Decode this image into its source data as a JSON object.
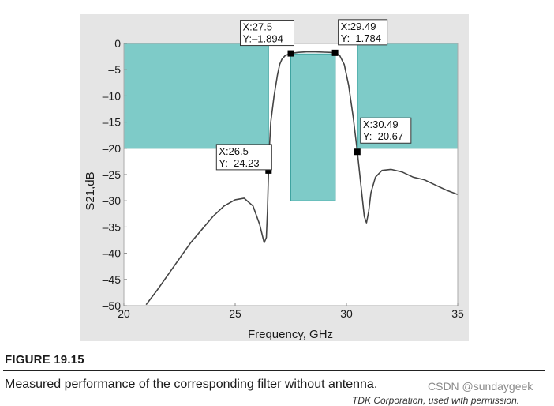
{
  "chart_data": {
    "type": "line",
    "xlabel": "Frequency, GHz",
    "ylabel": "S21,dB",
    "xlim": [
      20,
      35
    ],
    "ylim": [
      -50,
      0
    ],
    "xticks": [
      20,
      25,
      30,
      35
    ],
    "yticks": [
      0,
      -5,
      -10,
      -15,
      -20,
      -25,
      -30,
      -35,
      -40,
      -45,
      -50
    ],
    "grid": false,
    "series": [
      {
        "name": "S21",
        "x": [
          21.0,
          21.5,
          22.0,
          22.5,
          23.0,
          23.5,
          24.0,
          24.5,
          25.0,
          25.4,
          25.8,
          26.1,
          26.3,
          26.4,
          26.45,
          26.5,
          26.55,
          26.6,
          26.75,
          26.9,
          27.0,
          27.1,
          27.25,
          27.5,
          27.8,
          28.2,
          28.6,
          29.0,
          29.3,
          29.49,
          29.7,
          29.9,
          30.1,
          30.3,
          30.49,
          30.65,
          30.8,
          30.9,
          31.0,
          31.1,
          31.3,
          31.6,
          32.0,
          32.5,
          33.0,
          33.5,
          34.0,
          34.5,
          35.0
        ],
        "y": [
          -49.8,
          -47.0,
          -44.0,
          -41.0,
          -38.0,
          -35.5,
          -33.0,
          -31.0,
          -29.8,
          -29.5,
          -31.0,
          -34.5,
          -38.0,
          -37.0,
          -32.0,
          -24.23,
          -19.0,
          -15.0,
          -10.0,
          -6.0,
          -4.0,
          -3.0,
          -2.3,
          -1.894,
          -1.7,
          -1.6,
          -1.6,
          -1.65,
          -1.7,
          -1.784,
          -2.3,
          -4.0,
          -8.0,
          -14.0,
          -20.67,
          -27.0,
          -33.0,
          -34.2,
          -32.0,
          -28.5,
          -25.5,
          -24.2,
          -24.0,
          -24.5,
          -25.5,
          -26.0,
          -27.0,
          -28.0,
          -28.8
        ]
      }
    ],
    "mask_regions": [
      {
        "x_start": 20.0,
        "x_end": 26.5,
        "y_top": 0,
        "y_bottom": -20
      },
      {
        "x_start": 27.5,
        "x_end": 29.5,
        "y_top": -2,
        "y_bottom": -30
      },
      {
        "x_start": 30.5,
        "x_end": 35.0,
        "y_top": 0,
        "y_bottom": -20
      }
    ],
    "markers": [
      {
        "x": 26.5,
        "y": -24.23,
        "label_x": "X:26.5",
        "label_y": "Y:–24.23"
      },
      {
        "x": 27.5,
        "y": -1.894,
        "label_x": "X:27.5",
        "label_y": "Y:–1.894"
      },
      {
        "x": 29.49,
        "y": -1.784,
        "label_x": "X:29.49",
        "label_y": "Y:–1.784"
      },
      {
        "x": 30.49,
        "y": -20.67,
        "label_x": "X:30.49",
        "label_y": "Y:–20.67"
      }
    ],
    "colors": {
      "mask": "#7ecbc8",
      "mask_edge": "#3fa3a0",
      "curve": "#444444",
      "marker": "#000000",
      "plot_bg": "#ffffff",
      "panel_bg": "#e5e5e5"
    }
  },
  "figure": {
    "label": "FIGURE 19.15",
    "caption": "Measured performance of the corresponding filter without antenna.",
    "watermark": "CSDN @sundaygeek",
    "credit": "TDK Corporation, used with permission."
  }
}
